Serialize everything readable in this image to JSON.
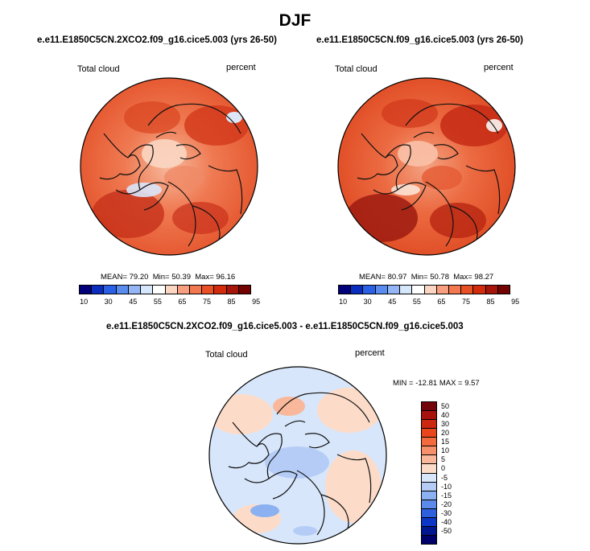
{
  "title": "DJF",
  "panels": [
    {
      "case": "e.e11.E1850C5CN.2XCO2.f09_g16.cice5.003 (yrs 26-50)",
      "variable": "Total cloud",
      "units": "percent",
      "mean_label": "MEAN=",
      "mean": "79.20",
      "min_label": "Min=",
      "min": "50.39",
      "max_label": "Max=",
      "max": "96.16"
    },
    {
      "case": "e.e11.E1850C5CN.f09_g16.cice5.003 (yrs 26-50)",
      "variable": "Total cloud",
      "units": "percent",
      "mean_label": "MEAN=",
      "mean": "80.97",
      "min_label": "Min=",
      "min": "50.78",
      "max_label": "Max=",
      "max": "98.27"
    }
  ],
  "diff": {
    "title": "e.e11.E1850C5CN.2XCO2.f09_g16.cice5.003 - e.e11.E1850C5CN.f09_g16.cice5.003",
    "variable": "Total cloud",
    "units": "percent",
    "minmax": "MIN = -12.81 MAX =   9.57"
  },
  "colorbar_abs": {
    "colors": [
      "#00007a",
      "#0a2dbd",
      "#2a60e6",
      "#5a8cf0",
      "#94b6f7",
      "#d6e6fb",
      "#ffffff",
      "#fbd6c2",
      "#f79f80",
      "#f3774f",
      "#ea5025",
      "#d22c0c",
      "#a5150a",
      "#730300"
    ],
    "labels": [
      "10",
      "30",
      "45",
      "55",
      "65",
      "75",
      "85",
      "95"
    ]
  },
  "colorbar_diff": {
    "colors": [
      "#73040a",
      "#a8120c",
      "#cc2710",
      "#e9461e",
      "#f26a3d",
      "#f5906a",
      "#f9b89b",
      "#fcdcc9",
      "#d7e6fb",
      "#b5cdf6",
      "#8cb1f1",
      "#5c8aea",
      "#2e60de",
      "#0c36c6",
      "#00168f",
      "#00006b"
    ],
    "labels": [
      "50",
      "40",
      "30",
      "20",
      "15",
      "10",
      "5",
      "0",
      "-5",
      "-10",
      "-15",
      "-20",
      "-30",
      "-40",
      "-50"
    ]
  }
}
